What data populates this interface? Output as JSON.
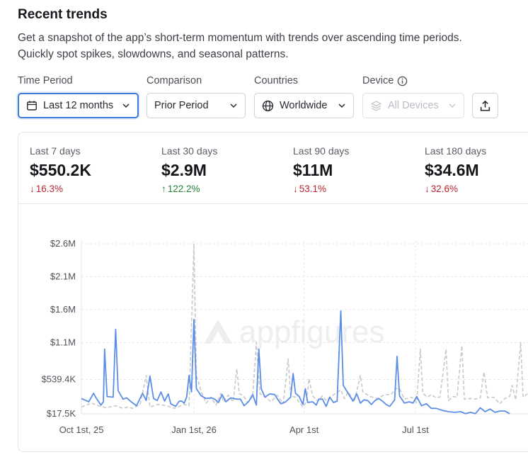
{
  "header": {
    "title": "Recent trends",
    "subtitle": "Get a snapshot of the app’s short-term momentum with trends over ascending time periods. Quickly spot spikes, slowdowns, and seasonal patterns."
  },
  "filters": {
    "time_period": {
      "label": "Time Period",
      "value": "Last 12 months"
    },
    "comparison": {
      "label": "Comparison",
      "value": "Prior Period"
    },
    "countries": {
      "label": "Countries",
      "value": "Worldwide"
    },
    "device": {
      "label": "Device",
      "value": "All Devices"
    }
  },
  "stats": [
    {
      "label": "Last 7 days",
      "value": "$550.2K",
      "change": "16.3%",
      "direction": "down"
    },
    {
      "label": "Last 30 days",
      "value": "$2.9M",
      "change": "122.2%",
      "direction": "up"
    },
    {
      "label": "Last 90 days",
      "value": "$11M",
      "change": "53.1%",
      "direction": "down"
    },
    {
      "label": "Last 180 days",
      "value": "$34.6M",
      "change": "32.6%",
      "direction": "down"
    }
  ],
  "watermark": "appfigures",
  "colors": {
    "current": "#5b8ee6",
    "prior": "#c8c8c8",
    "accent": "#3d7ad6",
    "down": "#b8252c",
    "up": "#22863a"
  },
  "chart_data": {
    "type": "line",
    "y_ticks": [
      "$2.6M",
      "$2.1M",
      "$1.6M",
      "$1.1M",
      "$539.4K",
      "$17.5K"
    ],
    "y_tick_values": [
      2600000,
      2100000,
      1600000,
      1100000,
      539400,
      17500
    ],
    "ylim": [
      17500,
      2600000
    ],
    "x_ticks": [
      "Oct 1st, 25",
      "Jan 1st, 26",
      "Apr 1st",
      "Jul 1st"
    ],
    "x_tick_days": [
      0,
      92,
      182,
      273
    ],
    "grid": true,
    "series": [
      {
        "style": "solid",
        "points": [
          [
            0,
            250000
          ],
          [
            6,
            200000
          ],
          [
            10,
            330000
          ],
          [
            12,
            260000
          ],
          [
            16,
            150000
          ],
          [
            18,
            200000
          ],
          [
            19,
            1000000
          ],
          [
            21,
            280000
          ],
          [
            26,
            270000
          ],
          [
            28,
            1300000
          ],
          [
            30,
            370000
          ],
          [
            34,
            240000
          ],
          [
            37,
            260000
          ],
          [
            40,
            210000
          ],
          [
            45,
            140000
          ],
          [
            50,
            330000
          ],
          [
            53,
            220000
          ],
          [
            56,
            590000
          ],
          [
            59,
            250000
          ],
          [
            62,
            220000
          ],
          [
            65,
            350000
          ],
          [
            68,
            210000
          ],
          [
            71,
            320000
          ],
          [
            73,
            170000
          ],
          [
            77,
            130000
          ],
          [
            80,
            210000
          ],
          [
            82,
            210000
          ],
          [
            84,
            180000
          ],
          [
            86,
            270000
          ],
          [
            88,
            600000
          ],
          [
            90,
            350000
          ],
          [
            92,
            1450000
          ],
          [
            94,
            400000
          ],
          [
            98,
            290000
          ],
          [
            102,
            250000
          ],
          [
            106,
            260000
          ],
          [
            109,
            240000
          ],
          [
            112,
            190000
          ],
          [
            115,
            310000
          ],
          [
            118,
            200000
          ],
          [
            122,
            260000
          ],
          [
            127,
            240000
          ],
          [
            130,
            240000
          ],
          [
            133,
            140000
          ],
          [
            137,
            210000
          ],
          [
            140,
            310000
          ],
          [
            143,
            150000
          ],
          [
            145,
            1000000
          ],
          [
            147,
            400000
          ],
          [
            150,
            270000
          ],
          [
            154,
            320000
          ],
          [
            158,
            310000
          ],
          [
            160,
            250000
          ],
          [
            163,
            170000
          ],
          [
            167,
            200000
          ],
          [
            171,
            270000
          ],
          [
            173,
            630000
          ],
          [
            175,
            330000
          ],
          [
            178,
            280000
          ],
          [
            181,
            160000
          ],
          [
            183,
            400000
          ],
          [
            185,
            190000
          ],
          [
            189,
            200000
          ],
          [
            192,
            150000
          ],
          [
            194,
            240000
          ],
          [
            197,
            240000
          ],
          [
            200,
            130000
          ],
          [
            203,
            270000
          ],
          [
            206,
            190000
          ],
          [
            209,
            210000
          ],
          [
            212,
            1580000
          ],
          [
            214,
            450000
          ],
          [
            218,
            330000
          ],
          [
            222,
            210000
          ],
          [
            225,
            320000
          ],
          [
            228,
            180000
          ],
          [
            231,
            230000
          ],
          [
            234,
            220000
          ],
          [
            237,
            160000
          ],
          [
            240,
            220000
          ],
          [
            243,
            250000
          ],
          [
            246,
            210000
          ],
          [
            249,
            160000
          ],
          [
            252,
            130000
          ],
          [
            256,
            230000
          ],
          [
            258,
            890000
          ],
          [
            260,
            290000
          ],
          [
            264,
            180000
          ],
          [
            268,
            200000
          ],
          [
            271,
            180000
          ],
          [
            274,
            280000
          ],
          [
            278,
            140000
          ],
          [
            282,
            170000
          ],
          [
            286,
            100000
          ],
          [
            290,
            100000
          ],
          [
            295,
            70000
          ],
          [
            300,
            50000
          ],
          [
            305,
            40000
          ],
          [
            310,
            50000
          ],
          [
            314,
            20000
          ],
          [
            318,
            40000
          ],
          [
            322,
            20000
          ],
          [
            326,
            110000
          ],
          [
            330,
            50000
          ],
          [
            334,
            90000
          ],
          [
            338,
            40000
          ],
          [
            342,
            60000
          ],
          [
            346,
            60000
          ],
          [
            350,
            20000
          ]
        ]
      },
      {
        "style": "dashed",
        "points": [
          [
            0,
            120000
          ],
          [
            8,
            180000
          ],
          [
            14,
            140000
          ],
          [
            20,
            110000
          ],
          [
            28,
            140000
          ],
          [
            34,
            100000
          ],
          [
            38,
            120000
          ],
          [
            42,
            100000
          ],
          [
            48,
            160000
          ],
          [
            53,
            600000
          ],
          [
            56,
            120000
          ],
          [
            62,
            160000
          ],
          [
            70,
            140000
          ],
          [
            76,
            100000
          ],
          [
            84,
            160000
          ],
          [
            88,
            140000
          ],
          [
            92,
            2600000
          ],
          [
            94,
            600000
          ],
          [
            98,
            350000
          ],
          [
            102,
            180000
          ],
          [
            106,
            270000
          ],
          [
            110,
            150000
          ],
          [
            114,
            330000
          ],
          [
            116,
            200000
          ],
          [
            120,
            300000
          ],
          [
            124,
            200000
          ],
          [
            127,
            700000
          ],
          [
            129,
            320000
          ],
          [
            132,
            300000
          ],
          [
            136,
            190000
          ],
          [
            140,
            280000
          ],
          [
            143,
            1100000
          ],
          [
            146,
            320000
          ],
          [
            150,
            280000
          ],
          [
            155,
            200000
          ],
          [
            160,
            300000
          ],
          [
            165,
            170000
          ],
          [
            169,
            850000
          ],
          [
            171,
            290000
          ],
          [
            175,
            270000
          ],
          [
            181,
            120000
          ],
          [
            184,
            200000
          ],
          [
            186,
            550000
          ],
          [
            189,
            290000
          ],
          [
            193,
            210000
          ],
          [
            197,
            290000
          ],
          [
            200,
            220000
          ],
          [
            204,
            280000
          ],
          [
            208,
            330000
          ],
          [
            212,
            380000
          ],
          [
            215,
            250000
          ],
          [
            218,
            350000
          ],
          [
            223,
            200000
          ],
          [
            228,
            600000
          ],
          [
            230,
            350000
          ],
          [
            236,
            280000
          ],
          [
            242,
            250000
          ],
          [
            248,
            310000
          ],
          [
            253,
            310000
          ],
          [
            257,
            400000
          ],
          [
            260,
            400000
          ],
          [
            264,
            240000
          ],
          [
            270,
            270000
          ],
          [
            274,
            190000
          ],
          [
            277,
            1000000
          ],
          [
            279,
            330000
          ],
          [
            283,
            270000
          ],
          [
            286,
            310000
          ],
          [
            289,
            270000
          ],
          [
            293,
            270000
          ],
          [
            298,
            1000000
          ],
          [
            300,
            220000
          ],
          [
            304,
            280000
          ],
          [
            307,
            270000
          ],
          [
            311,
            1050000
          ],
          [
            313,
            240000
          ],
          [
            318,
            250000
          ],
          [
            322,
            240000
          ],
          [
            326,
            260000
          ],
          [
            329,
            650000
          ],
          [
            332,
            260000
          ],
          [
            337,
            270000
          ],
          [
            342,
            170000
          ],
          [
            346,
            250000
          ],
          [
            350,
            280000
          ],
          [
            352,
            450000
          ],
          [
            355,
            230000
          ],
          [
            359,
            1100000
          ],
          [
            361,
            270000
          ],
          [
            365,
            330000
          ]
        ]
      }
    ]
  }
}
